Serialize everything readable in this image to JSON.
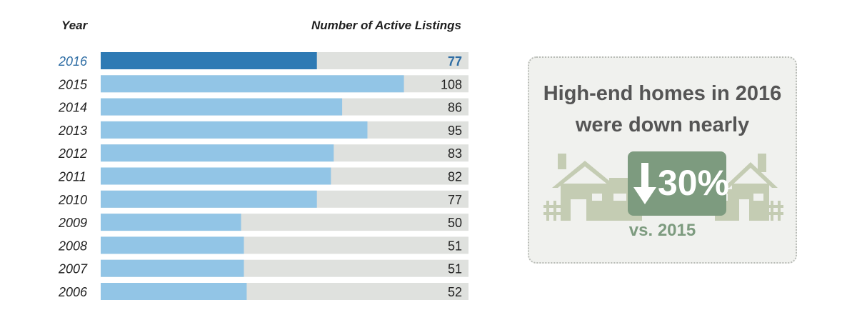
{
  "chart_data": {
    "type": "bar",
    "orientation": "horizontal",
    "category_header": "Year",
    "value_header": "Number of Active Listings",
    "categories": [
      "2016",
      "2015",
      "2014",
      "2013",
      "2012",
      "2011",
      "2010",
      "2009",
      "2008",
      "2007",
      "2006"
    ],
    "values": [
      77,
      108,
      86,
      95,
      83,
      82,
      77,
      50,
      51,
      51,
      52
    ],
    "highlight": "2016",
    "colors": {
      "bar": "#92c5e6",
      "highlight_bar": "#2e7ab4",
      "track": "#dfe1de",
      "highlight_text": "#2e6da4",
      "text": "#222222"
    }
  },
  "callout": {
    "line1": "High-end homes in 2016",
    "line2": "were down nearly",
    "percent": "30%",
    "subtext": "vs. 2015",
    "icon": "houses-down-arrow-icon",
    "colors": {
      "accent": "#7d9b7f",
      "house": "#c4ccb3",
      "box_bg": "#f0f1ee"
    }
  }
}
